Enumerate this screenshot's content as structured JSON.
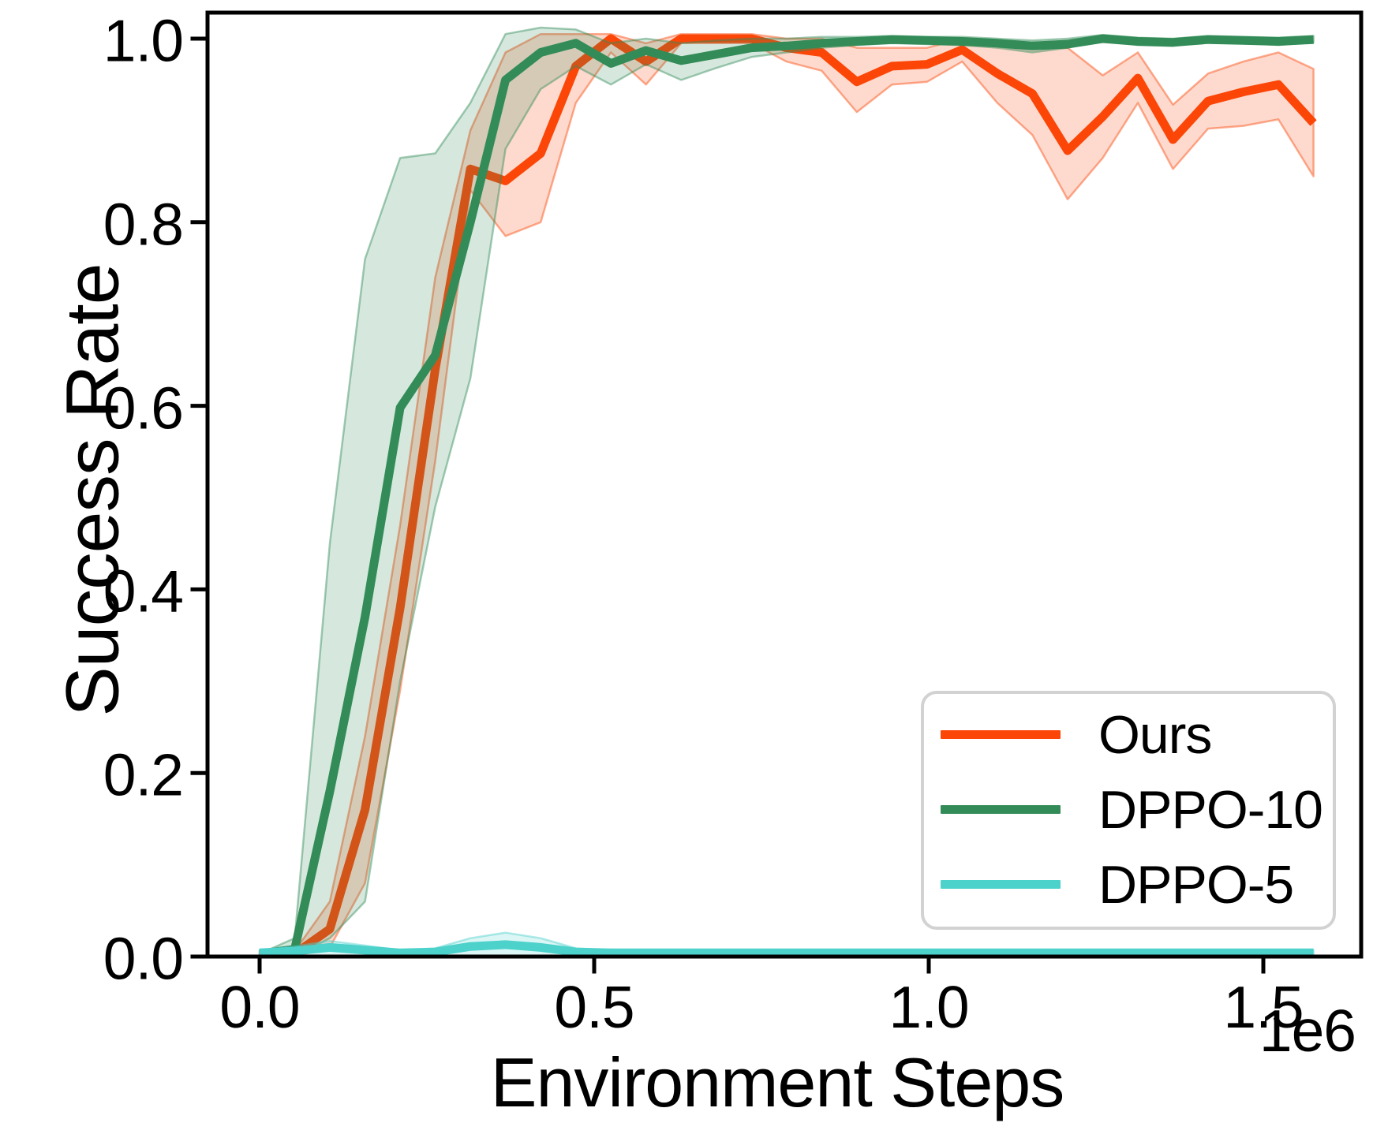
{
  "axes": {
    "ylabel": "Success Rate",
    "xlabel": "Environment Steps",
    "offset_label": "1e6"
  },
  "legend": {
    "entries": [
      {
        "label": "Ours",
        "color": "#FB4608"
      },
      {
        "label": "DPPO-10",
        "color": "#338C58"
      },
      {
        "label": "DPPO-5",
        "color": "#4CD1CB"
      }
    ]
  },
  "chart_data": {
    "type": "line",
    "title": "",
    "xlabel": "Environment Steps",
    "ylabel": "Success Rate",
    "x_units": "1e6 steps",
    "xlim": [
      -0.0779,
      1.646
    ],
    "ylim": [
      0.0,
      1.0285
    ],
    "grid": false,
    "legend_position": "lower right",
    "xticks": {
      "values": [
        0.0,
        0.5,
        1.0,
        1.5
      ],
      "labels": [
        "0.0",
        "0.5",
        "1.0",
        "1.5"
      ]
    },
    "yticks": {
      "values": [
        0.0,
        0.2,
        0.4,
        0.6,
        0.8,
        1.0
      ],
      "labels": [
        "0.0",
        "0.2",
        "0.4",
        "0.6",
        "0.8",
        "1.0"
      ]
    },
    "x": [
      0,
      0.0525,
      0.105,
      0.1575,
      0.21,
      0.2625,
      0.315,
      0.3675,
      0.42,
      0.4725,
      0.525,
      0.5775,
      0.63,
      0.6825,
      0.735,
      0.7875,
      0.84,
      0.8925,
      0.945,
      0.9975,
      1.05,
      1.1025,
      1.155,
      1.2075,
      1.26,
      1.3125,
      1.365,
      1.4175,
      1.47,
      1.5225,
      1.575
    ],
    "series": [
      {
        "name": "Ours",
        "color": "#FB4608",
        "values": [
          0.003,
          0.003,
          0.03,
          0.16,
          0.38,
          0.64,
          0.858,
          0.845,
          0.875,
          0.97,
          1.0,
          0.975,
          1.0,
          1.0,
          1.0,
          0.99,
          0.985,
          0.953,
          0.97,
          0.972,
          0.988,
          0.962,
          0.94,
          0.878,
          0.915,
          0.957,
          0.89,
          0.932,
          0.942,
          0.95,
          0.908
        ],
        "band_upper": [
          0.006,
          0.006,
          0.06,
          0.24,
          0.47,
          0.74,
          0.9,
          0.985,
          1.005,
          1.005,
          1.005,
          0.995,
          1.005,
          1.005,
          1.005,
          1.0,
          1.0,
          0.99,
          0.99,
          0.99,
          1.0,
          0.995,
          0.99,
          0.99,
          0.96,
          0.985,
          0.928,
          0.962,
          0.975,
          0.985,
          0.967
        ],
        "band_lower": [
          0.0,
          0.0,
          0.01,
          0.08,
          0.29,
          0.54,
          0.835,
          0.785,
          0.8,
          0.93,
          0.985,
          0.95,
          0.995,
          0.995,
          0.995,
          0.975,
          0.965,
          0.92,
          0.95,
          0.953,
          0.975,
          0.93,
          0.895,
          0.825,
          0.87,
          0.93,
          0.858,
          0.902,
          0.905,
          0.912,
          0.85
        ]
      },
      {
        "name": "DPPO-10",
        "color": "#338C58",
        "values": [
          0.003,
          0.008,
          0.18,
          0.37,
          0.598,
          0.655,
          0.8,
          0.955,
          0.985,
          0.995,
          0.973,
          0.987,
          0.976,
          0.983,
          0.99,
          0.992,
          0.995,
          0.997,
          0.999,
          0.998,
          0.997,
          0.995,
          0.992,
          0.994,
          1.0,
          0.997,
          0.996,
          0.999,
          0.998,
          0.997,
          0.999
        ],
        "band_upper": [
          0.003,
          0.02,
          0.45,
          0.76,
          0.87,
          0.875,
          0.93,
          1.005,
          1.012,
          1.01,
          0.995,
          1.0,
          0.995,
          0.998,
          1.0,
          1.0,
          1.002,
          1.002,
          1.003,
          1.002,
          1.002,
          1.0,
          0.998,
          1.0,
          1.004,
          1.001,
          1.0,
          1.003,
          1.002,
          1.001,
          1.003
        ],
        "band_lower": [
          0.003,
          0.0,
          0.02,
          0.06,
          0.3,
          0.49,
          0.63,
          0.88,
          0.945,
          0.97,
          0.95,
          0.972,
          0.955,
          0.968,
          0.98,
          0.985,
          0.99,
          0.993,
          0.995,
          0.994,
          0.993,
          0.99,
          0.985,
          0.99,
          0.998,
          0.993,
          0.992,
          0.996,
          0.995,
          0.993,
          0.996
        ]
      },
      {
        "name": "DPPO-5",
        "color": "#4CD1CB",
        "values": [
          0.004,
          0.006,
          0.01,
          0.007,
          0.004,
          0.005,
          0.011,
          0.013,
          0.01,
          0.005,
          0.004,
          0.004,
          0.004,
          0.004,
          0.004,
          0.004,
          0.004,
          0.004,
          0.004,
          0.004,
          0.004,
          0.004,
          0.004,
          0.004,
          0.004,
          0.004,
          0.004,
          0.004,
          0.004,
          0.004,
          0.004
        ],
        "band_upper": [
          0.007,
          0.011,
          0.017,
          0.012,
          0.007,
          0.009,
          0.02,
          0.026,
          0.02,
          0.009,
          0.007,
          0.007,
          0.007,
          0.007,
          0.007,
          0.007,
          0.007,
          0.007,
          0.007,
          0.007,
          0.007,
          0.007,
          0.007,
          0.007,
          0.007,
          0.007,
          0.007,
          0.007,
          0.007,
          0.007,
          0.007
        ],
        "band_lower": [
          0,
          0,
          0,
          0,
          0,
          0,
          0,
          0,
          0,
          0,
          0,
          0,
          0,
          0,
          0,
          0,
          0,
          0,
          0,
          0,
          0,
          0,
          0,
          0,
          0,
          0,
          0,
          0,
          0,
          0,
          0
        ]
      }
    ],
    "band_fill_opacity": 0.2,
    "band_edge_opacity": 0.45
  }
}
